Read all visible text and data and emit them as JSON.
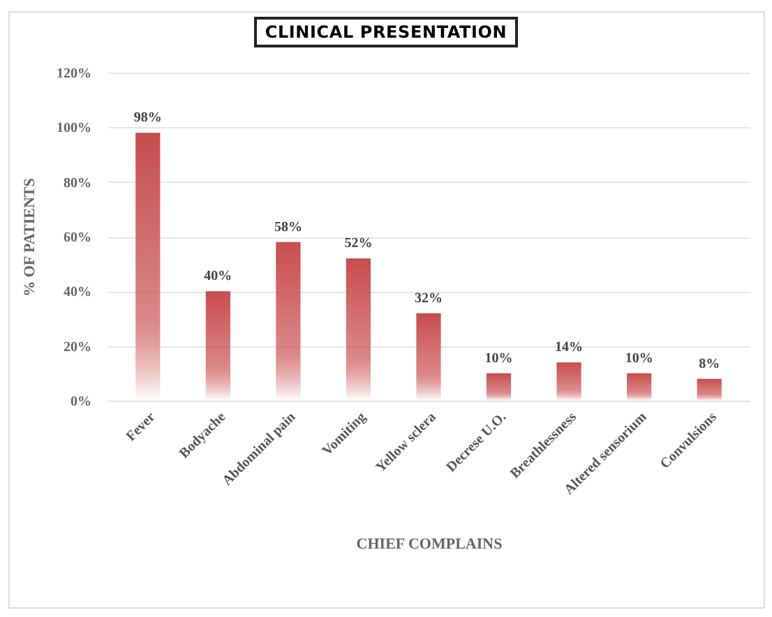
{
  "chart_data": {
    "type": "bar",
    "title": "CLINICAL PRESENTATION",
    "xlabel": "CHIEF COMPLAINS",
    "ylabel": "% OF PATIENTS",
    "categories": [
      "Fever",
      "Bodyache",
      "Abdominal pain",
      "Vomiting",
      "Yellow sclera",
      "Decrese U.O.",
      "Breathlessness",
      "Altered sensorium",
      "Convulsions"
    ],
    "values": [
      98,
      40,
      58,
      52,
      32,
      10,
      14,
      10,
      8
    ],
    "value_labels": [
      "98%",
      "40%",
      "58%",
      "52%",
      "32%",
      "10%",
      "14%",
      "10%",
      "8%"
    ],
    "color": "#c94c4c",
    "ylim": [
      0,
      120
    ],
    "yticks": [
      {
        "value": 0,
        "label": "0%"
      },
      {
        "value": 20,
        "label": "20%"
      },
      {
        "value": 40,
        "label": "40%"
      },
      {
        "value": 60,
        "label": "60%"
      },
      {
        "value": 80,
        "label": "80%"
      },
      {
        "value": 100,
        "label": "100%"
      },
      {
        "value": 120,
        "label": "120%"
      }
    ],
    "grid": "y"
  }
}
